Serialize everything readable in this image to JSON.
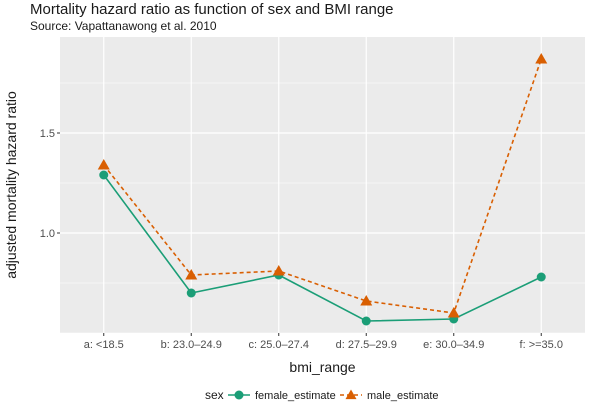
{
  "chart_data": {
    "type": "line",
    "title": "Mortality hazard ratio as function of sex and BMI range",
    "subtitle": "Source: Vapattanawong et al. 2010",
    "xlabel": "bmi_range",
    "ylabel": "adjusted mortality hazard ratio",
    "categories": [
      "a: <18.5",
      "b: 23.0–24.9",
      "c: 25.0–27.4",
      "d: 27.5–29.9",
      "e: 30.0–34.9",
      "f: >=35.0"
    ],
    "ylim": [
      0.5,
      1.98
    ],
    "yticks": [
      1.0,
      1.5
    ],
    "ytick_labels": [
      "1.0",
      "1.5"
    ],
    "grid": true,
    "legend_title": "sex",
    "legend_position": "bottom",
    "series": [
      {
        "name": "female_estimate",
        "values": [
          1.29,
          0.7,
          0.79,
          0.56,
          0.57,
          0.78
        ],
        "color": "#1b9e77",
        "marker": "circle",
        "line": "solid"
      },
      {
        "name": "male_estimate",
        "values": [
          1.34,
          0.79,
          0.81,
          0.66,
          0.6,
          1.87
        ],
        "color": "#d95f02",
        "marker": "triangle",
        "line": "dashed"
      }
    ]
  }
}
